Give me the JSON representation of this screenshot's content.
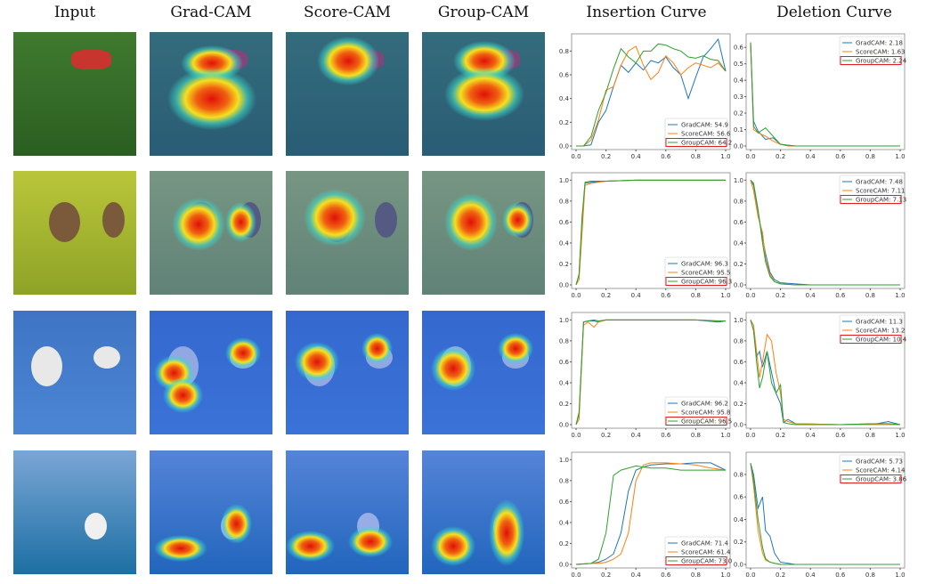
{
  "headers": [
    "Input",
    "Grad-CAM",
    "Score-CAM",
    "Group-CAM",
    "Insertion Curve",
    "Deletion Curve"
  ],
  "colors": {
    "GradCAM": "#1f77b4",
    "ScoreCAM": "#ff7f0e",
    "GroupCAM": "#2ca02c",
    "highlight": "#e02020"
  },
  "rows": [
    {
      "subject": "dog",
      "bg": [
        "#3f7a2e",
        "#2b5e22"
      ]
    },
    {
      "subject": "birds-on-branch",
      "bg": [
        "#b9c63a",
        "#8ea326"
      ]
    },
    {
      "subject": "flying-birds",
      "bg": [
        "#3f74c4",
        "#4b86d4"
      ]
    },
    {
      "subject": "boats",
      "bg": [
        "#7aa6d6",
        "#1d6fa3"
      ]
    }
  ],
  "chart_data": [
    {
      "type": "line",
      "title": "Insertion Curve",
      "row": 1,
      "ylim": [
        0,
        0.9
      ],
      "yticks": [
        0,
        0.2,
        0.4,
        0.6,
        0.8
      ],
      "xticks": [
        0,
        0.2,
        0.4,
        0.6,
        0.8,
        1.0
      ],
      "legend": "bottom-right",
      "x": [
        0,
        0.05,
        0.1,
        0.15,
        0.2,
        0.25,
        0.3,
        0.35,
        0.4,
        0.45,
        0.5,
        0.55,
        0.6,
        0.65,
        0.7,
        0.75,
        0.8,
        0.85,
        0.9,
        0.95,
        1.0
      ],
      "series": [
        {
          "name": "GradCAM",
          "label": "GradCAM: 54.9",
          "values": [
            0,
            0,
            0.01,
            0.2,
            0.3,
            0.5,
            0.68,
            0.62,
            0.7,
            0.64,
            0.72,
            0.7,
            0.75,
            0.66,
            0.6,
            0.4,
            0.58,
            0.75,
            0.82,
            0.9,
            0.63
          ]
        },
        {
          "name": "ScoreCAM",
          "label": "ScoreCAM: 56.6",
          "values": [
            0,
            0,
            0.05,
            0.22,
            0.47,
            0.5,
            0.68,
            0.8,
            0.84,
            0.68,
            0.56,
            0.62,
            0.76,
            0.7,
            0.6,
            0.66,
            0.7,
            0.68,
            0.66,
            0.7,
            0.63
          ]
        },
        {
          "name": "GroupCAM",
          "label": "GroupCAM: 64.2",
          "values": [
            0,
            0,
            0.08,
            0.3,
            0.45,
            0.65,
            0.82,
            0.75,
            0.7,
            0.8,
            0.8,
            0.86,
            0.85,
            0.82,
            0.8,
            0.75,
            0.74,
            0.76,
            0.73,
            0.72,
            0.63
          ]
        }
      ]
    },
    {
      "type": "line",
      "title": "Deletion Curve",
      "row": 1,
      "ylim": [
        0,
        0.65
      ],
      "yticks": [
        0,
        0.1,
        0.2,
        0.3,
        0.4,
        0.5,
        0.6
      ],
      "xticks": [
        0,
        0.2,
        0.4,
        0.6,
        0.8,
        1.0
      ],
      "legend": "top-right",
      "x": [
        0,
        0.02,
        0.05,
        0.1,
        0.15,
        0.2,
        0.25,
        0.3,
        0.4,
        0.6,
        0.8,
        1.0
      ],
      "series": [
        {
          "name": "GradCAM",
          "label": "GradCAM: 2.18",
          "values": [
            0.63,
            0.15,
            0.09,
            0.04,
            0.05,
            0.01,
            0.005,
            0,
            0,
            0,
            0,
            0
          ]
        },
        {
          "name": "ScoreCAM",
          "label": "ScoreCAM: 1.63",
          "values": [
            0.63,
            0.1,
            0.08,
            0.06,
            0.03,
            0.01,
            0,
            0,
            0,
            0,
            0,
            0
          ]
        },
        {
          "name": "GroupCAM",
          "label": "GroupCAM: 2.24",
          "values": [
            0.63,
            0.12,
            0.08,
            0.11,
            0.06,
            0.01,
            0.005,
            0,
            0,
            0,
            0,
            0
          ]
        }
      ]
    },
    {
      "type": "line",
      "title": "Insertion Curve",
      "row": 2,
      "ylim": [
        0,
        1.02
      ],
      "yticks": [
        0,
        0.2,
        0.4,
        0.6,
        0.8,
        1.0
      ],
      "xticks": [
        0,
        0.2,
        0.4,
        0.6,
        0.8,
        1.0
      ],
      "legend": "bottom-right",
      "x": [
        0,
        0.02,
        0.04,
        0.06,
        0.1,
        0.2,
        0.4,
        0.6,
        0.8,
        1.0
      ],
      "series": [
        {
          "name": "GradCAM",
          "label": "GradCAM: 96.3",
          "values": [
            0,
            0.1,
            0.6,
            0.97,
            0.98,
            0.99,
            1,
            1,
            1,
            1
          ]
        },
        {
          "name": "ScoreCAM",
          "label": "ScoreCAM: 95.5",
          "values": [
            0,
            0.05,
            0.5,
            0.95,
            0.97,
            0.99,
            1,
            1,
            1,
            1
          ]
        },
        {
          "name": "GroupCAM",
          "label": "GroupCAM: 96.3",
          "values": [
            0,
            0.1,
            0.65,
            0.98,
            0.99,
            0.99,
            1,
            1,
            1,
            1
          ]
        }
      ]
    },
    {
      "type": "line",
      "title": "Deletion Curve",
      "row": 2,
      "ylim": [
        0,
        1.02
      ],
      "yticks": [
        0,
        0.2,
        0.4,
        0.6,
        0.8,
        1.0
      ],
      "xticks": [
        0,
        0.2,
        0.4,
        0.6,
        0.8,
        1.0
      ],
      "legend": "top-right",
      "x": [
        0,
        0.02,
        0.05,
        0.08,
        0.1,
        0.13,
        0.16,
        0.2,
        0.3,
        0.4,
        0.6,
        1.0
      ],
      "series": [
        {
          "name": "GradCAM",
          "label": "GradCAM: 7.48",
          "values": [
            1,
            0.95,
            0.7,
            0.45,
            0.3,
            0.12,
            0.05,
            0.02,
            0.01,
            0,
            0,
            0
          ]
        },
        {
          "name": "ScoreCAM",
          "label": "ScoreCAM: 7.11",
          "values": [
            1,
            0.9,
            0.65,
            0.5,
            0.25,
            0.1,
            0.03,
            0.01,
            0,
            0,
            0,
            0
          ]
        },
        {
          "name": "GroupCAM",
          "label": "GroupCAM: 7.13",
          "values": [
            1,
            0.97,
            0.72,
            0.4,
            0.22,
            0.08,
            0.03,
            0.01,
            0,
            0,
            0,
            0
          ]
        }
      ]
    },
    {
      "type": "line",
      "title": "Insertion Curve",
      "row": 3,
      "ylim": [
        0,
        1.02
      ],
      "yticks": [
        0,
        0.2,
        0.4,
        0.6,
        0.8,
        1.0
      ],
      "xticks": [
        0,
        0.2,
        0.4,
        0.6,
        0.8,
        1.0
      ],
      "legend": "bottom-right",
      "x": [
        0,
        0.02,
        0.05,
        0.08,
        0.12,
        0.15,
        0.2,
        0.4,
        0.6,
        0.8,
        0.95,
        1.0
      ],
      "series": [
        {
          "name": "GradCAM",
          "label": "GradCAM: 96.2",
          "values": [
            0,
            0.1,
            0.98,
            0.99,
            0.99,
            0.98,
            1,
            1,
            1,
            1,
            0.98,
            0.99
          ]
        },
        {
          "name": "ScoreCAM",
          "label": "ScoreCAM: 95.8",
          "values": [
            0,
            0.05,
            0.95,
            0.98,
            0.93,
            0.98,
            1,
            1,
            1,
            1,
            0.99,
            0.99
          ]
        },
        {
          "name": "GroupCAM",
          "label": "GroupCAM: 96.5",
          "values": [
            0,
            0.12,
            0.98,
            0.99,
            1,
            0.99,
            1,
            1,
            1,
            1,
            0.99,
            0.99
          ]
        }
      ]
    },
    {
      "type": "line",
      "title": "Deletion Curve",
      "row": 3,
      "ylim": [
        0,
        1.02
      ],
      "yticks": [
        0,
        0.2,
        0.4,
        0.6,
        0.8,
        1.0
      ],
      "xticks": [
        0,
        0.2,
        0.4,
        0.6,
        0.8,
        1.0
      ],
      "legend": "top-right",
      "x": [
        0,
        0.02,
        0.04,
        0.06,
        0.08,
        0.11,
        0.14,
        0.17,
        0.2,
        0.22,
        0.25,
        0.3,
        0.6,
        0.85,
        0.92,
        1.0
      ],
      "series": [
        {
          "name": "GradCAM",
          "label": "GradCAM: 11.3",
          "values": [
            1,
            0.9,
            0.65,
            0.7,
            0.55,
            0.7,
            0.5,
            0.3,
            0.2,
            0.02,
            0.05,
            0.01,
            0,
            0.01,
            0.03,
            0
          ]
        },
        {
          "name": "ScoreCAM",
          "label": "ScoreCAM: 13.2",
          "values": [
            1,
            0.95,
            0.7,
            0.45,
            0.6,
            0.86,
            0.8,
            0.5,
            0.3,
            0.05,
            0.03,
            0.01,
            0,
            0,
            0,
            0
          ]
        },
        {
          "name": "GroupCAM",
          "label": "GroupCAM: 10.4",
          "values": [
            1,
            0.9,
            0.6,
            0.35,
            0.45,
            0.7,
            0.4,
            0.3,
            0.38,
            0.02,
            0.01,
            0,
            0,
            0.01,
            0.01,
            0
          ]
        }
      ]
    },
    {
      "type": "line",
      "title": "Insertion Curve",
      "row": 4,
      "ylim": [
        0,
        1.02
      ],
      "yticks": [
        0,
        0.2,
        0.4,
        0.6,
        0.8,
        1.0
      ],
      "xticks": [
        0,
        0.2,
        0.4,
        0.6,
        0.8,
        1.0
      ],
      "legend": "bottom-right",
      "x": [
        0,
        0.1,
        0.15,
        0.2,
        0.25,
        0.3,
        0.35,
        0.4,
        0.45,
        0.5,
        0.6,
        0.7,
        0.8,
        0.9,
        1.0
      ],
      "series": [
        {
          "name": "GradCAM",
          "label": "GradCAM: 71.4",
          "values": [
            0,
            0.01,
            0.02,
            0.05,
            0.1,
            0.3,
            0.7,
            0.9,
            0.93,
            0.95,
            0.96,
            0.96,
            0.97,
            0.97,
            0.9
          ]
        },
        {
          "name": "ScoreCAM",
          "label": "ScoreCAM: 61.4",
          "values": [
            0,
            0.01,
            0.01,
            0.02,
            0.05,
            0.1,
            0.3,
            0.8,
            0.95,
            0.97,
            0.97,
            0.96,
            0.95,
            0.92,
            0.9
          ]
        },
        {
          "name": "GroupCAM",
          "label": "GroupCAM: 73.0",
          "values": [
            0,
            0.01,
            0.05,
            0.3,
            0.85,
            0.9,
            0.92,
            0.94,
            0.93,
            0.92,
            0.92,
            0.9,
            0.9,
            0.9,
            0.9
          ]
        }
      ]
    },
    {
      "type": "line",
      "title": "Deletion Curve",
      "row": 4,
      "ylim": [
        0,
        0.95
      ],
      "yticks": [
        0,
        0.2,
        0.4,
        0.6,
        0.8
      ],
      "xticks": [
        0,
        0.2,
        0.4,
        0.6,
        0.8,
        1.0
      ],
      "legend": "top-right",
      "x": [
        0,
        0.02,
        0.05,
        0.08,
        0.1,
        0.13,
        0.16,
        0.2,
        0.3,
        0.6,
        1.0
      ],
      "series": [
        {
          "name": "GradCAM",
          "label": "GradCAM: 5.73",
          "values": [
            0.9,
            0.8,
            0.5,
            0.6,
            0.3,
            0.25,
            0.1,
            0.02,
            0,
            0,
            0
          ]
        },
        {
          "name": "ScoreCAM",
          "label": "ScoreCAM: 4.14",
          "values": [
            0.9,
            0.7,
            0.3,
            0.1,
            0.04,
            0.02,
            0.01,
            0,
            0,
            0,
            0
          ]
        },
        {
          "name": "GroupCAM",
          "label": "GroupCAM: 3.86",
          "values": [
            0.9,
            0.75,
            0.4,
            0.15,
            0.05,
            0.02,
            0.01,
            0,
            0,
            0,
            0
          ]
        }
      ]
    }
  ]
}
